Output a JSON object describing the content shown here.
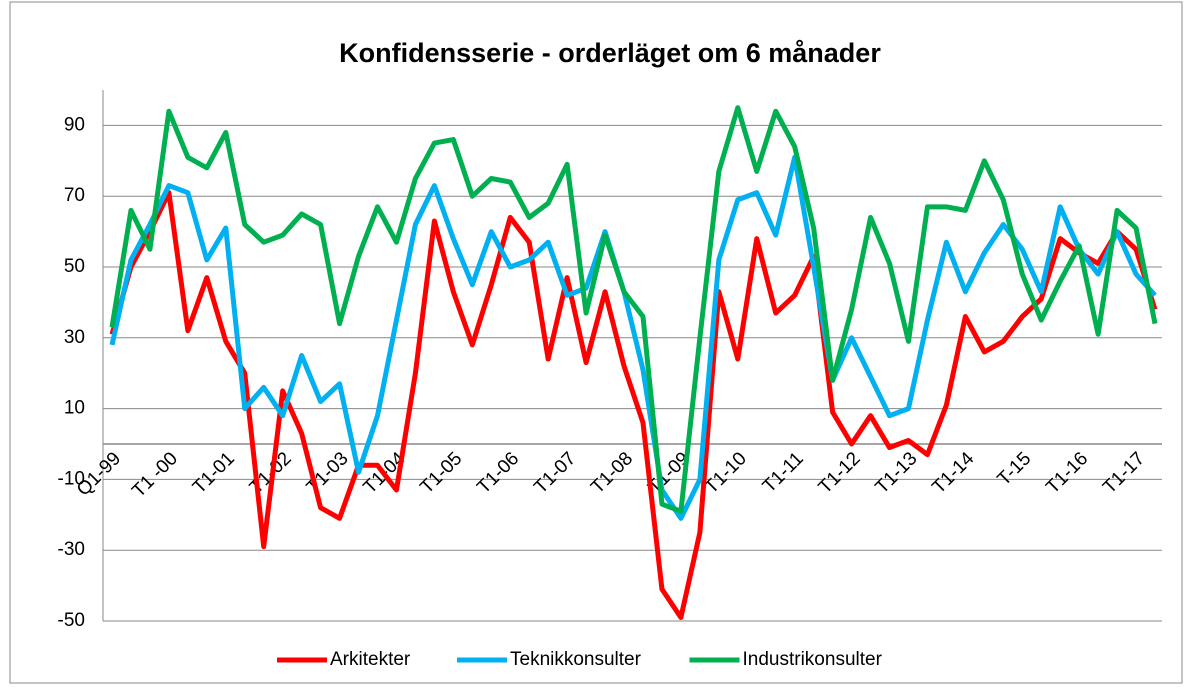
{
  "chart_data": {
    "type": "line",
    "title": "Konfidensserie - orderläget om 6 månader",
    "categories": [
      "Q1-99",
      null,
      null,
      "T1 -00",
      null,
      null,
      "T1-01",
      null,
      null,
      "T1-02",
      null,
      null,
      "T1-03",
      null,
      null,
      "T1-04",
      null,
      null,
      "T1-05",
      null,
      null,
      "T1-06",
      null,
      null,
      "T1-07",
      null,
      null,
      "T1-08",
      null,
      null,
      "T1-09",
      null,
      null,
      "T1-10",
      null,
      null,
      "T1-11",
      null,
      null,
      "T1-12",
      null,
      null,
      "T1-13",
      null,
      null,
      "T1-14",
      null,
      null,
      "T-15",
      null,
      null,
      "T1-16",
      null,
      null,
      "T1-17",
      null
    ],
    "series": [
      {
        "name": "Arkitekter",
        "color": "#ff0000",
        "values": [
          31,
          50,
          60,
          71,
          32,
          47,
          29,
          20,
          -29,
          15,
          3,
          -18,
          -21,
          -6,
          -6,
          -13,
          20,
          63,
          43,
          28,
          45,
          64,
          57,
          24,
          47,
          23,
          43,
          22,
          6,
          -41,
          -49,
          -25,
          43,
          24,
          58,
          37,
          42,
          53,
          9,
          0,
          8,
          -1,
          1,
          -3,
          11,
          36,
          26,
          29,
          36,
          41,
          58,
          54,
          51,
          60,
          55,
          38
        ]
      },
      {
        "name": "Teknikkonsulter",
        "color": "#00b0f0",
        "values": [
          28,
          52,
          62,
          73,
          71,
          52,
          61,
          10,
          16,
          8,
          25,
          12,
          17,
          -8,
          8,
          35,
          62,
          73,
          58,
          45,
          60,
          50,
          52,
          57,
          42,
          44,
          60,
          43,
          21,
          -13,
          -21,
          -10,
          52,
          69,
          71,
          59,
          81,
          50,
          18,
          30,
          19,
          8,
          10,
          35,
          57,
          43,
          54,
          62,
          55,
          43,
          67,
          55,
          48,
          60,
          48,
          42
        ]
      },
      {
        "name": "Industrikonsulter",
        "color": "#00b050",
        "values": [
          33,
          66,
          55,
          94,
          81,
          78,
          88,
          62,
          57,
          59,
          65,
          62,
          34,
          53,
          67,
          57,
          75,
          85,
          86,
          70,
          75,
          74,
          64,
          68,
          79,
          37,
          59,
          43,
          36,
          -17,
          -19,
          30,
          77,
          95,
          77,
          94,
          84,
          61,
          18,
          38,
          64,
          51,
          29,
          67,
          67,
          66,
          80,
          69,
          48,
          35,
          46,
          56,
          31,
          66,
          61,
          34
        ]
      }
    ],
    "ylim": [
      -50,
      100
    ],
    "yticks": [
      -50,
      -30,
      -10,
      10,
      30,
      50,
      70,
      90
    ],
    "grid": true,
    "legend": "bottom"
  }
}
